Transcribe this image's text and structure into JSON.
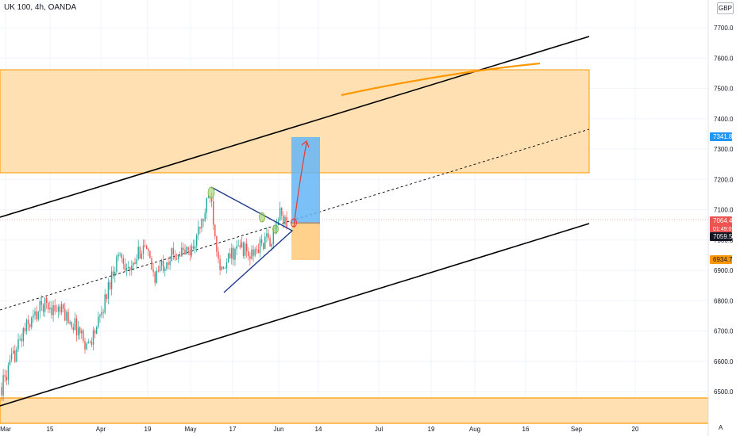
{
  "header": {
    "symbol": "UK 100, 4h, OANDA",
    "currency": "GBP"
  },
  "footer": {
    "auto_label": "A"
  },
  "chart_data": {
    "type": "candlestick",
    "xlabels": [
      "Mar",
      "15",
      "Apr",
      "19",
      "May",
      "17",
      "Jun",
      "14",
      "Jul",
      "19",
      "Aug",
      "16",
      "Sep",
      "20"
    ],
    "ylabels": [
      "7700.0",
      "7600.0",
      "7500.0",
      "7400.0",
      "7300.0",
      "7200.0",
      "7100.0",
      "7000.0",
      "6900.0",
      "6800.0",
      "6700.0",
      "6600.0",
      "6500.0"
    ],
    "ylim": [
      6450,
      7740
    ],
    "grid": true,
    "price_labels": {
      "target": "7341.8",
      "current": "7064.4",
      "countdown": "01:49:06",
      "prev": "7059.5",
      "stop": "6934.7"
    },
    "colors": {
      "up": "#26a69a",
      "down": "#ef5350",
      "zone_fill": "#ffe0b2",
      "zone_border": "#ff9800",
      "profit": "#64b5f6",
      "loss": "#ffcc80",
      "triangle": "#1e3a8a",
      "arrow": "#e53935",
      "target_tag": "#2196f3",
      "current_tag": "#ef5350",
      "prev_tag": "#131722",
      "stop_tag": "#ff9800"
    }
  }
}
